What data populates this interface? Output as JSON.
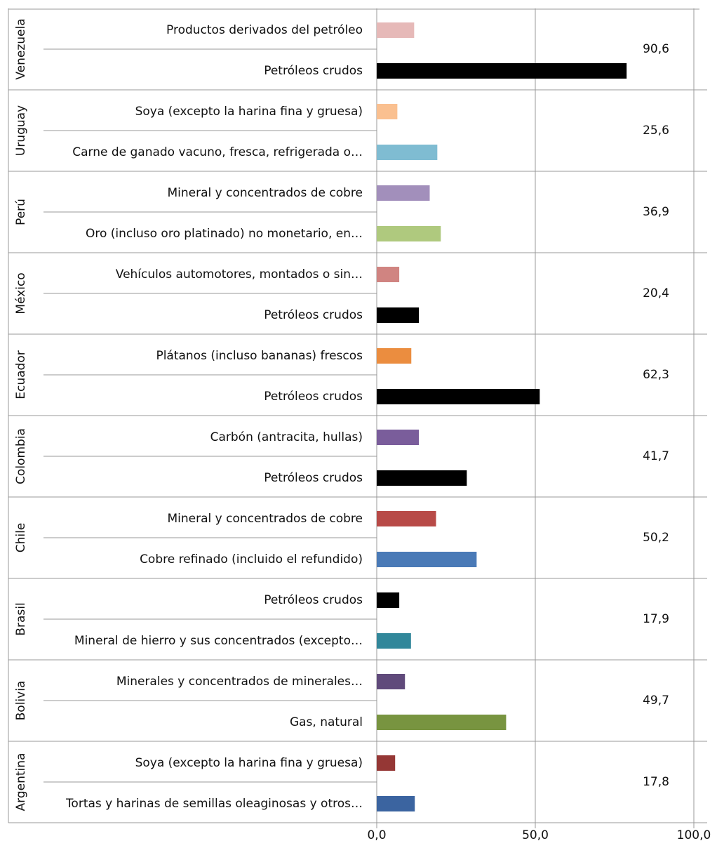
{
  "chart_data": {
    "type": "grouped-hbar",
    "groups": [
      {
        "country": "Venezuela",
        "total": 90.6,
        "total_label": "90,6",
        "items": [
          {
            "name": "Productos derivados del petróleo",
            "value": 11.8,
            "color": "#e6b9b8"
          },
          {
            "name": "Petróleos crudos",
            "value": 78.8,
            "color": "#000000"
          }
        ]
      },
      {
        "country": "Uruguay",
        "total": 25.6,
        "total_label": "25,6",
        "items": [
          {
            "name": "Soya (excepto la harina fina y gruesa)",
            "value": 6.5,
            "color": "#fac090"
          },
          {
            "name": "Carne de ganado vacuno, fresca, refrigerada o…",
            "value": 19.1,
            "color": "#7fbcd2"
          }
        ]
      },
      {
        "country": "Perú",
        "total": 36.9,
        "total_label": "36,9",
        "items": [
          {
            "name": "Mineral y concentrados de cobre",
            "value": 16.7,
            "color": "#a28fbb"
          },
          {
            "name": "Oro (incluso oro platinado) no monetario, en…",
            "value": 20.2,
            "color": "#afc97e"
          }
        ]
      },
      {
        "country": "México",
        "total": 20.4,
        "total_label": "20,4",
        "items": [
          {
            "name": "Vehículos automotores, montados o sin…",
            "value": 7.1,
            "color": "#d08481"
          },
          {
            "name": "Petróleos crudos",
            "value": 13.3,
            "color": "#000000"
          }
        ]
      },
      {
        "country": "Ecuador",
        "total": 62.3,
        "total_label": "62,3",
        "items": [
          {
            "name": "Plátanos (incluso bananas) frescos",
            "value": 10.9,
            "color": "#eb8d3f"
          },
          {
            "name": "Petróleos crudos",
            "value": 51.4,
            "color": "#000000"
          }
        ]
      },
      {
        "country": "Colombia",
        "total": 41.7,
        "total_label": "41,7",
        "items": [
          {
            "name": "Carbón (antracita, hullas)",
            "value": 13.3,
            "color": "#7a5d9b"
          },
          {
            "name": "Petróleos crudos",
            "value": 28.4,
            "color": "#000000"
          }
        ]
      },
      {
        "country": "Chile",
        "total": 50.2,
        "total_label": "50,2",
        "items": [
          {
            "name": "Mineral y concentrados de cobre",
            "value": 18.7,
            "color": "#b84a47"
          },
          {
            "name": "Cobre refinado (incluido el refundido)",
            "value": 31.5,
            "color": "#4a7ab7"
          }
        ]
      },
      {
        "country": "Brasil",
        "total": 17.9,
        "total_label": "17,9",
        "items": [
          {
            "name": "Petróleos crudos",
            "value": 7.1,
            "color": "#000000"
          },
          {
            "name": "Mineral de hierro y sus concentrados (excepto…",
            "value": 10.8,
            "color": "#31879a"
          }
        ]
      },
      {
        "country": "Bolivia",
        "total": 49.7,
        "total_label": "49,7",
        "items": [
          {
            "name": "Minerales y concentrados de minerales…",
            "value": 8.9,
            "color": "#604a7b"
          },
          {
            "name": "Gas, natural",
            "value": 40.8,
            "color": "#789440"
          }
        ]
      },
      {
        "country": "Argentina",
        "total": 17.8,
        "total_label": "17,8",
        "items": [
          {
            "name": "Soya (excepto la harina fina y gruesa)",
            "value": 5.8,
            "color": "#953735"
          },
          {
            "name": "Tortas y harinas de semillas oleaginosas y otros…",
            "value": 12.0,
            "color": "#3b64a0"
          }
        ]
      }
    ],
    "xlim": [
      0,
      100
    ],
    "xticks": [
      {
        "value": 0,
        "label": "0,0"
      },
      {
        "value": 50,
        "label": "50,0"
      },
      {
        "value": 100,
        "label": "100,0"
      }
    ],
    "grid": true
  }
}
